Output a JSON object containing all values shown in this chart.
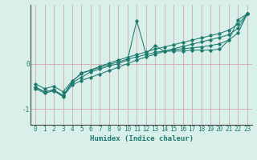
{
  "xlabel": "Humidex (Indice chaleur)",
  "bg_color": "#d8efea",
  "line_color": "#1e7a6e",
  "grid_color": "#d4a8a8",
  "x_values": [
    0,
    1,
    2,
    3,
    4,
    5,
    6,
    7,
    8,
    9,
    10,
    11,
    12,
    13,
    14,
    15,
    16,
    17,
    18,
    19,
    20,
    21,
    22,
    23
  ],
  "line1": [
    -0.55,
    -0.65,
    -0.6,
    -0.73,
    -0.42,
    -0.3,
    -0.18,
    -0.12,
    -0.05,
    0.0,
    0.08,
    0.95,
    0.22,
    0.4,
    0.27,
    0.28,
    0.28,
    0.3,
    0.3,
    0.3,
    0.32,
    0.52,
    0.97,
    1.1
  ],
  "line2": [
    -0.52,
    -0.62,
    -0.58,
    -0.7,
    -0.4,
    -0.2,
    -0.15,
    -0.08,
    -0.02,
    0.04,
    0.1,
    0.15,
    0.2,
    0.25,
    0.28,
    0.31,
    0.33,
    0.35,
    0.37,
    0.4,
    0.44,
    0.52,
    0.68,
    1.1
  ],
  "line3": [
    -0.52,
    -0.62,
    -0.58,
    -0.72,
    -0.47,
    -0.37,
    -0.3,
    -0.23,
    -0.15,
    -0.08,
    0.0,
    0.08,
    0.15,
    0.21,
    0.27,
    0.33,
    0.38,
    0.43,
    0.48,
    0.53,
    0.58,
    0.64,
    0.78,
    1.1
  ],
  "line4": [
    -0.45,
    -0.55,
    -0.5,
    -0.62,
    -0.38,
    -0.22,
    -0.14,
    -0.06,
    0.01,
    0.08,
    0.14,
    0.2,
    0.26,
    0.32,
    0.37,
    0.42,
    0.47,
    0.52,
    0.57,
    0.62,
    0.67,
    0.74,
    0.87,
    1.1
  ],
  "ylim": [
    -1.35,
    1.3
  ],
  "xlim": [
    -0.5,
    23.5
  ],
  "yticks": [
    -1,
    0
  ],
  "xticks": [
    0,
    1,
    2,
    3,
    4,
    5,
    6,
    7,
    8,
    9,
    10,
    11,
    12,
    13,
    14,
    15,
    16,
    17,
    18,
    19,
    20,
    21,
    22,
    23
  ],
  "tick_fontsize": 5.5,
  "xlabel_fontsize": 6.5,
  "ylabel_fontsize": 6.5
}
